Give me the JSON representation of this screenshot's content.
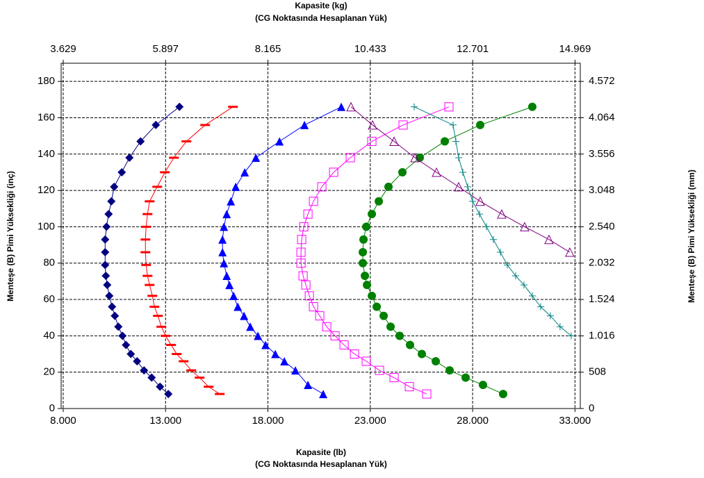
{
  "chart_data": {
    "type": "scatter",
    "top_title": [
      "Kapasite (kg)",
      "(CG Noktasında Hesaplanan Yük)"
    ],
    "bottom_title": [
      "Kapasite (lb)",
      "(CG Noktasında Hesaplanan Yük)"
    ],
    "ylabel": "Menteşe (B) Pimi Yüksekliği (inç)",
    "y2label": "Menteşe (B) Pimi Yüksekliği (mm)",
    "xlim": [
      7900,
      33260
    ],
    "xticks": [
      {
        "value": 8000,
        "label": "8.000"
      },
      {
        "value": 13000,
        "label": "13.000"
      },
      {
        "value": 18000,
        "label": "18.000"
      },
      {
        "value": 23000,
        "label": "23.000"
      },
      {
        "value": 28000,
        "label": "28.000"
      },
      {
        "value": 33000,
        "label": "33.000"
      }
    ],
    "x2lim": [
      3583,
      15086
    ],
    "x2ticks": [
      {
        "value": 3629,
        "label": "3.629"
      },
      {
        "value": 5897,
        "label": "5.897"
      },
      {
        "value": 8165,
        "label": "8.165"
      },
      {
        "value": 10433,
        "label": "10.433"
      },
      {
        "value": 12701,
        "label": "12.701"
      },
      {
        "value": 14969,
        "label": "14.969"
      }
    ],
    "ylim": [
      0,
      190
    ],
    "yticks": [
      0,
      20,
      40,
      60,
      80,
      100,
      120,
      140,
      160,
      180
    ],
    "y2lim": [
      0,
      4826
    ],
    "y2ticks": [
      0,
      508,
      {
        "value": 1016,
        "label": "1.016"
      },
      {
        "value": 1524,
        "label": "1.524"
      },
      {
        "value": 2032,
        "label": "2.032"
      },
      {
        "value": 2540,
        "label": "2.540"
      },
      {
        "value": 3048,
        "label": "3.048"
      },
      {
        "value": 3556,
        "label": "3.556"
      },
      {
        "value": 4064,
        "label": "4.064"
      },
      {
        "value": 4572,
        "label": "4.572"
      }
    ],
    "grid": true,
    "series": [
      {
        "color": "#000080",
        "marker": "diamond",
        "x": [
          13136,
          12729,
          12321,
          11948,
          11609,
          11303,
          11066,
          10896,
          10693,
          10523,
          10387,
          10252,
          10150,
          10082,
          10048,
          10048,
          10048,
          10116,
          10218,
          10353,
          10489,
          10862,
          11235,
          11778,
          12525,
          13679
        ],
        "values": [
          8,
          12,
          17,
          21,
          26,
          30,
          35,
          40,
          45,
          51,
          56,
          62,
          68,
          73,
          79,
          86,
          93,
          100,
          107,
          114,
          122,
          130,
          138,
          147,
          156,
          166
        ]
      },
      {
        "color": "#ff0000",
        "marker": "dash",
        "x": [
          15647,
          15104,
          14663,
          14255,
          13882,
          13543,
          13271,
          13000,
          12796,
          12627,
          12457,
          12355,
          12220,
          12118,
          12050,
          12016,
          12016,
          12050,
          12118,
          12220,
          12593,
          12966,
          13407,
          14018,
          14934,
          16291
        ],
        "values": [
          8,
          12,
          17,
          21,
          26,
          30,
          35,
          40,
          45,
          51,
          56,
          62,
          68,
          73,
          79,
          86,
          93,
          100,
          107,
          114,
          122,
          130,
          138,
          147,
          156,
          166
        ]
      },
      {
        "color": "#0000ff",
        "marker": "triangle",
        "x": [
          20702,
          19956,
          19345,
          18802,
          18361,
          17886,
          17513,
          17139,
          16834,
          16529,
          16325,
          16122,
          15986,
          15850,
          15782,
          15782,
          15850,
          15986,
          16189,
          16427,
          16868,
          17411,
          18565,
          19786,
          21584
        ],
        "values": [
          8,
          13,
          21,
          26,
          30,
          35,
          40,
          45,
          51,
          56,
          62,
          68,
          73,
          80,
          86,
          93,
          100,
          107,
          114,
          122,
          130,
          138,
          147,
          156,
          166
        ]
      },
      {
        "color": "#ff00ff",
        "marker": "square",
        "x": [
          25758,
          24910,
          24163,
          23450,
          22806,
          22229,
          21720,
          21279,
          20872,
          20532,
          20227,
          20024,
          19854,
          19718,
          19616,
          19616,
          19650,
          19752,
          19956,
          20227,
          20634,
          21211,
          22025,
          23077,
          24604,
          26843
        ],
        "values": [
          8,
          12,
          17,
          21,
          26,
          30,
          35,
          40,
          45,
          51,
          56,
          62,
          68,
          73,
          80,
          86,
          93,
          100,
          107,
          114,
          122,
          130,
          138,
          147,
          156,
          166
        ]
      },
      {
        "color": "#008000",
        "marker": "circle",
        "x": [
          29490,
          28506,
          27658,
          26878,
          26199,
          25520,
          24943,
          24434,
          23993,
          23654,
          23315,
          23077,
          22840,
          22738,
          22636,
          22636,
          22670,
          22806,
          23077,
          23417,
          23891,
          24570,
          25418,
          26640,
          28370,
          30915
        ],
        "values": [
          8,
          13,
          17,
          21,
          26,
          30,
          35,
          40,
          45,
          51,
          56,
          62,
          68,
          73,
          80,
          86,
          93,
          100,
          107,
          114,
          122,
          130,
          138,
          147,
          156,
          166
        ]
      },
      {
        "color": "#800080",
        "marker": "triangle-open",
        "x": [
          32747,
          31730,
          30542,
          29422,
          28370,
          27318,
          26233,
          25181,
          24163,
          23111,
          22059
        ],
        "values": [
          86,
          93,
          100,
          107,
          114,
          122,
          130,
          138,
          147,
          156,
          166
        ]
      },
      {
        "color": "#008080",
        "marker": "plus",
        "x": [
          32815,
          32272,
          31797,
          31322,
          30915,
          30508,
          30101,
          29694,
          29354,
          29015,
          28676,
          28336,
          27998,
          27760,
          27522,
          27318,
          27183,
          27047,
          25147
        ],
        "values": [
          40,
          45,
          51,
          56,
          62,
          68,
          73,
          79,
          86,
          93,
          100,
          107,
          114,
          122,
          130,
          138,
          147,
          156,
          166
        ]
      }
    ]
  }
}
